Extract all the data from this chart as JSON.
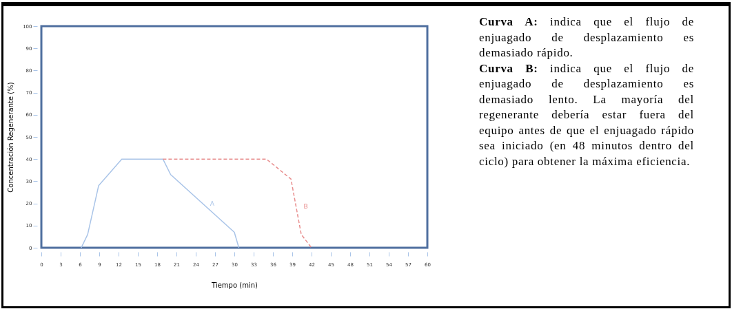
{
  "chart_data": {
    "type": "line",
    "xlabel": "Tiempo (min)",
    "ylabel": "Concentración Regenerante (%)",
    "xlim": [
      0,
      60
    ],
    "ylim": [
      0,
      100
    ],
    "xticks": [
      0,
      3,
      6,
      9,
      12,
      15,
      18,
      21,
      24,
      27,
      30,
      33,
      36,
      39,
      42,
      45,
      48,
      51,
      54,
      57,
      60
    ],
    "yticks": [
      0,
      10,
      20,
      30,
      40,
      50,
      60,
      70,
      80,
      90,
      100
    ],
    "grid": false,
    "legend": false,
    "series": [
      {
        "name": "A",
        "color": "#a9c4e8",
        "line_style": "solid",
        "x": [
          6.2,
          7.2,
          8.9,
          12.5,
          18.9,
          20.1,
          30,
          30.7
        ],
        "values": [
          0,
          6,
          28,
          40,
          40,
          33,
          7,
          0
        ]
      },
      {
        "name": "B",
        "color": "#e88d8d",
        "line_style": "dashed",
        "x": [
          18.9,
          35,
          38.8,
          40.4,
          42
        ],
        "values": [
          40,
          40,
          31,
          6,
          0
        ]
      }
    ],
    "annotations": [
      "Curva A: indica que el flujo de enjuagado de desplazamiento es demasiado rápido.",
      "Curva B: indica que el flujo de enjuagado de desplazamiento es demasiado lento. La mayoría del regenerante debería estar fuera del equipo antes de que el enjuagado rápido sea iniciado (en 48 minutos dentro del ciclo) para obtener la máxima eficiencia."
    ]
  }
}
